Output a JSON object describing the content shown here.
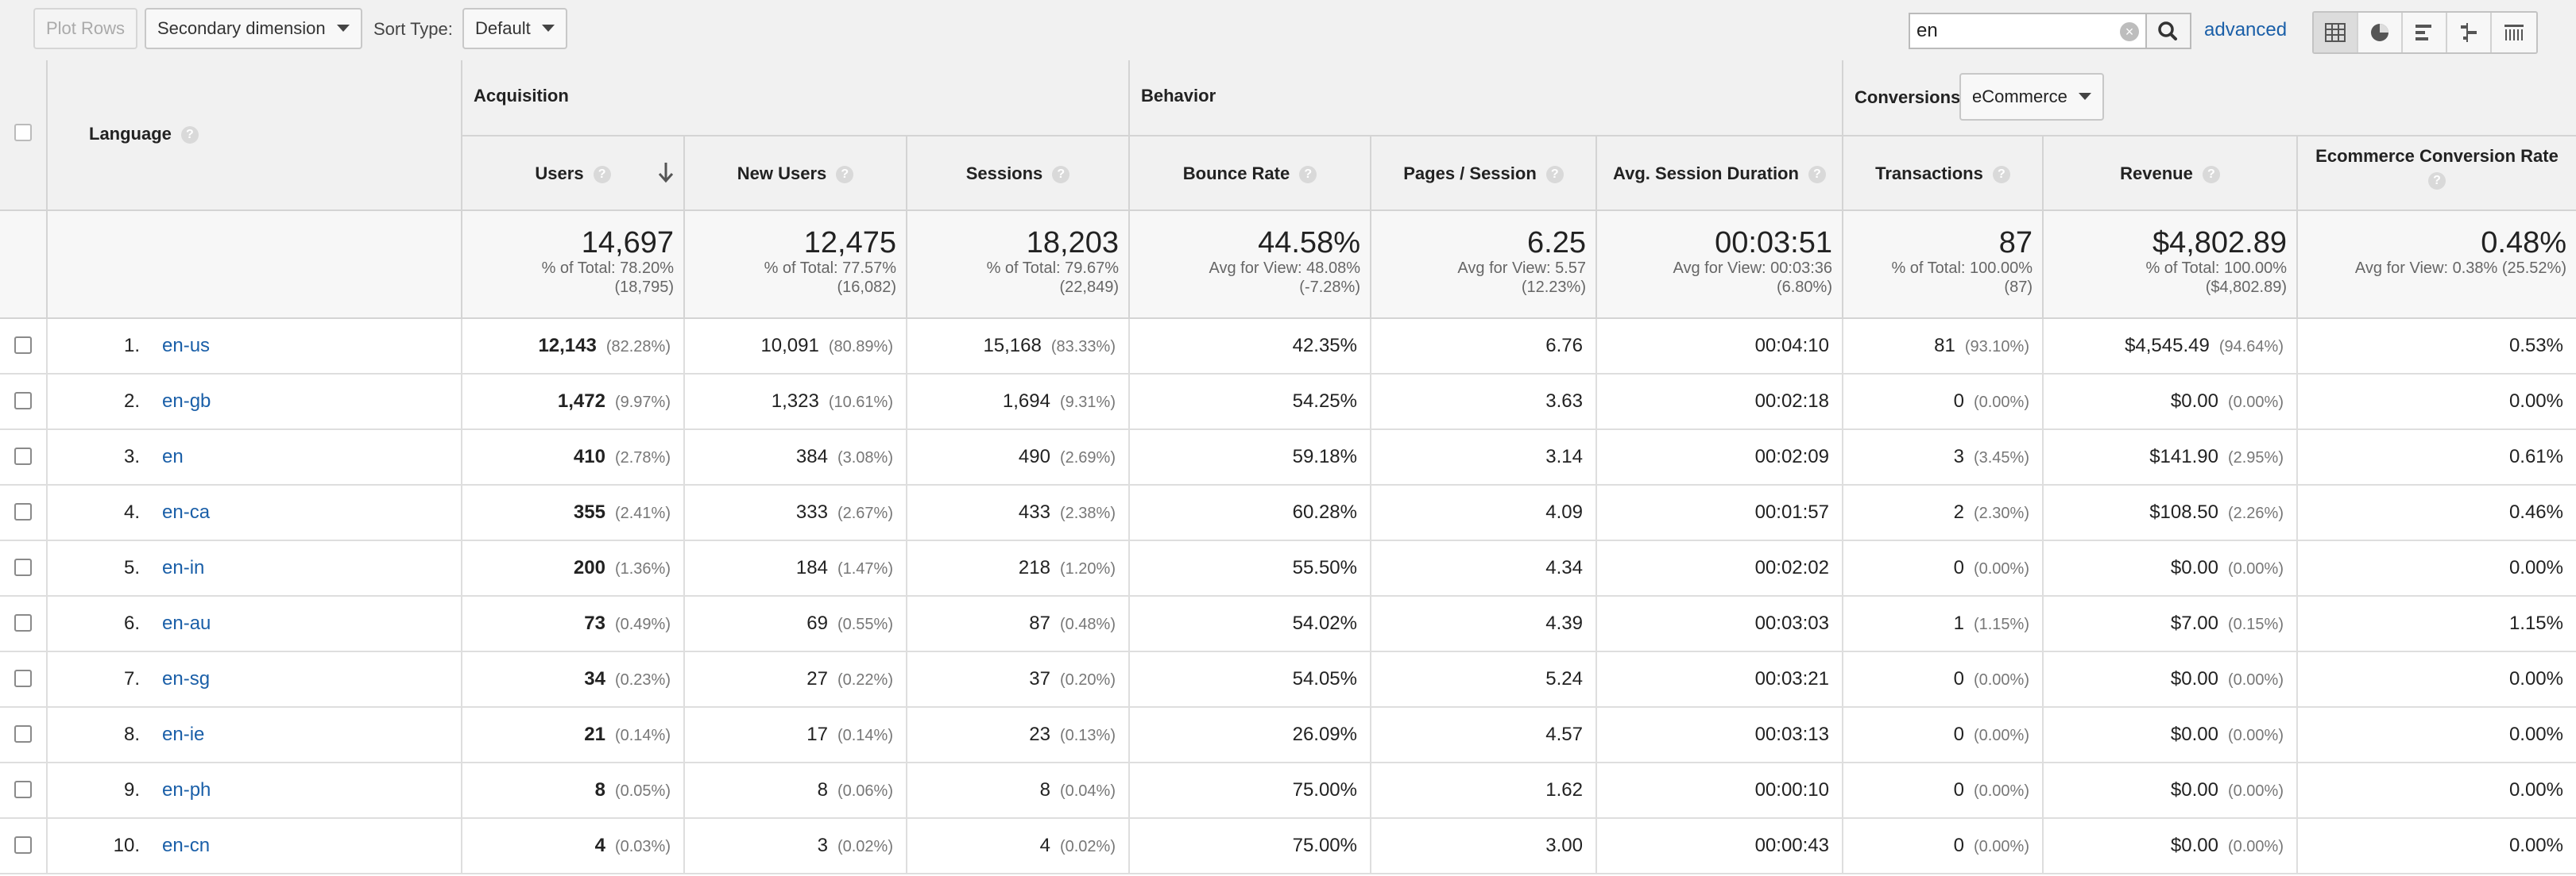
{
  "toolbar": {
    "plot_rows_label": "Plot Rows",
    "secondary_dimension_label": "Secondary dimension",
    "sort_type_label": "Sort Type:",
    "sort_type_value": "Default",
    "search_value": "en",
    "advanced_label": "advanced",
    "view_icons": [
      "table-view-icon",
      "pie-view-icon",
      "bar-view-icon",
      "comparison-view-icon",
      "pivot-view-icon"
    ]
  },
  "header": {
    "dimension_label": "Language",
    "help_glyph": "?",
    "groups": {
      "acquisition": "Acquisition",
      "behavior": "Behavior",
      "conversions": "Conversions"
    },
    "conversions_select": "eCommerce",
    "columns": {
      "users": "Users",
      "new_users": "New Users",
      "sessions": "Sessions",
      "bounce_rate": "Bounce Rate",
      "pages_session": "Pages / Session",
      "avg_duration": "Avg. Session Duration",
      "transactions": "Transactions",
      "revenue": "Revenue",
      "ecr": "Ecommerce Conversion Rate"
    }
  },
  "totals": {
    "users": {
      "value": "14,697",
      "line1": "% of Total: 78.20%",
      "line2": "(18,795)"
    },
    "new_users": {
      "value": "12,475",
      "line1": "% of Total: 77.57%",
      "line2": "(16,082)"
    },
    "sessions": {
      "value": "18,203",
      "line1": "% of Total: 79.67%",
      "line2": "(22,849)"
    },
    "bounce_rate": {
      "value": "44.58%",
      "line1": "Avg for View: 48.08%",
      "line2": "(-7.28%)"
    },
    "pages_session": {
      "value": "6.25",
      "line1": "Avg for View: 5.57",
      "line2": "(12.23%)"
    },
    "avg_duration": {
      "value": "00:03:51",
      "line1": "Avg for View: 00:03:36",
      "line2": "(6.80%)"
    },
    "transactions": {
      "value": "87",
      "line1": "% of Total: 100.00%",
      "line2": "(87)"
    },
    "revenue": {
      "value": "$4,802.89",
      "line1": "% of Total: 100.00%",
      "line2": "($4,802.89)"
    },
    "ecr": {
      "value": "0.48%",
      "line1": "Avg for View: 0.38% (25.52%)",
      "line2": ""
    }
  },
  "rows": [
    {
      "num": "1.",
      "lang": "en-us",
      "users": "12,143",
      "users_pct": "(82.28%)",
      "new_users": "10,091",
      "new_users_pct": "(80.89%)",
      "sessions": "15,168",
      "sessions_pct": "(83.33%)",
      "bounce": "42.35%",
      "pps": "6.76",
      "dur": "00:04:10",
      "trans": "81",
      "trans_pct": "(93.10%)",
      "rev": "$4,545.49",
      "rev_pct": "(94.64%)",
      "ecr": "0.53%"
    },
    {
      "num": "2.",
      "lang": "en-gb",
      "users": "1,472",
      "users_pct": "(9.97%)",
      "new_users": "1,323",
      "new_users_pct": "(10.61%)",
      "sessions": "1,694",
      "sessions_pct": "(9.31%)",
      "bounce": "54.25%",
      "pps": "3.63",
      "dur": "00:02:18",
      "trans": "0",
      "trans_pct": "(0.00%)",
      "rev": "$0.00",
      "rev_pct": "(0.00%)",
      "ecr": "0.00%"
    },
    {
      "num": "3.",
      "lang": "en",
      "users": "410",
      "users_pct": "(2.78%)",
      "new_users": "384",
      "new_users_pct": "(3.08%)",
      "sessions": "490",
      "sessions_pct": "(2.69%)",
      "bounce": "59.18%",
      "pps": "3.14",
      "dur": "00:02:09",
      "trans": "3",
      "trans_pct": "(3.45%)",
      "rev": "$141.90",
      "rev_pct": "(2.95%)",
      "ecr": "0.61%"
    },
    {
      "num": "4.",
      "lang": "en-ca",
      "users": "355",
      "users_pct": "(2.41%)",
      "new_users": "333",
      "new_users_pct": "(2.67%)",
      "sessions": "433",
      "sessions_pct": "(2.38%)",
      "bounce": "60.28%",
      "pps": "4.09",
      "dur": "00:01:57",
      "trans": "2",
      "trans_pct": "(2.30%)",
      "rev": "$108.50",
      "rev_pct": "(2.26%)",
      "ecr": "0.46%"
    },
    {
      "num": "5.",
      "lang": "en-in",
      "users": "200",
      "users_pct": "(1.36%)",
      "new_users": "184",
      "new_users_pct": "(1.47%)",
      "sessions": "218",
      "sessions_pct": "(1.20%)",
      "bounce": "55.50%",
      "pps": "4.34",
      "dur": "00:02:02",
      "trans": "0",
      "trans_pct": "(0.00%)",
      "rev": "$0.00",
      "rev_pct": "(0.00%)",
      "ecr": "0.00%"
    },
    {
      "num": "6.",
      "lang": "en-au",
      "users": "73",
      "users_pct": "(0.49%)",
      "new_users": "69",
      "new_users_pct": "(0.55%)",
      "sessions": "87",
      "sessions_pct": "(0.48%)",
      "bounce": "54.02%",
      "pps": "4.39",
      "dur": "00:03:03",
      "trans": "1",
      "trans_pct": "(1.15%)",
      "rev": "$7.00",
      "rev_pct": "(0.15%)",
      "ecr": "1.15%"
    },
    {
      "num": "7.",
      "lang": "en-sg",
      "users": "34",
      "users_pct": "(0.23%)",
      "new_users": "27",
      "new_users_pct": "(0.22%)",
      "sessions": "37",
      "sessions_pct": "(0.20%)",
      "bounce": "54.05%",
      "pps": "5.24",
      "dur": "00:03:21",
      "trans": "0",
      "trans_pct": "(0.00%)",
      "rev": "$0.00",
      "rev_pct": "(0.00%)",
      "ecr": "0.00%"
    },
    {
      "num": "8.",
      "lang": "en-ie",
      "users": "21",
      "users_pct": "(0.14%)",
      "new_users": "17",
      "new_users_pct": "(0.14%)",
      "sessions": "23",
      "sessions_pct": "(0.13%)",
      "bounce": "26.09%",
      "pps": "4.57",
      "dur": "00:03:13",
      "trans": "0",
      "trans_pct": "(0.00%)",
      "rev": "$0.00",
      "rev_pct": "(0.00%)",
      "ecr": "0.00%"
    },
    {
      "num": "9.",
      "lang": "en-ph",
      "users": "8",
      "users_pct": "(0.05%)",
      "new_users": "8",
      "new_users_pct": "(0.06%)",
      "sessions": "8",
      "sessions_pct": "(0.04%)",
      "bounce": "75.00%",
      "pps": "1.62",
      "dur": "00:00:10",
      "trans": "0",
      "trans_pct": "(0.00%)",
      "rev": "$0.00",
      "rev_pct": "(0.00%)",
      "ecr": "0.00%"
    },
    {
      "num": "10.",
      "lang": "en-cn",
      "users": "4",
      "users_pct": "(0.03%)",
      "new_users": "3",
      "new_users_pct": "(0.02%)",
      "sessions": "4",
      "sessions_pct": "(0.02%)",
      "bounce": "75.00%",
      "pps": "3.00",
      "dur": "00:00:43",
      "trans": "0",
      "trans_pct": "(0.00%)",
      "rev": "$0.00",
      "rev_pct": "(0.00%)",
      "ecr": "0.00%"
    }
  ],
  "colors": {
    "link": "#1a5fa8",
    "header_bg": "#f1f1f1",
    "border": "#d4d4d4"
  }
}
